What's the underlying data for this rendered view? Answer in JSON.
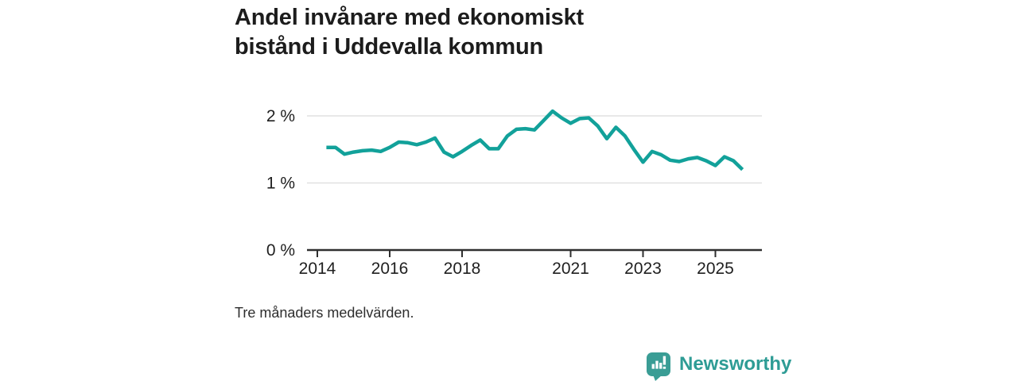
{
  "header": {
    "title": "Andel invånare med ekonomiskt bistånd i Uddevalla kommun"
  },
  "footer": {
    "note": "Tre månaders medelvärden.",
    "brand": "Newsworthy"
  },
  "colors": {
    "line": "#12A19A",
    "grid": "#e0e0e0",
    "axis": "#2f2f2f",
    "tick_label": "#1f1f1f",
    "title": "#1c1c1c",
    "brand_teal": "#2E9C95",
    "brand_icon_teal": "#3A9D95",
    "background": "#ffffff"
  },
  "chart_data": {
    "type": "line",
    "title": "Andel invånare med ekonomiskt bistånd i Uddevalla kommun",
    "subtitle": "Tre månaders medelvärden.",
    "unit": "%",
    "xlabel": "",
    "ylabel": "",
    "xlim": [
      2013.7,
      2026.3
    ],
    "ylim": [
      0,
      2.43
    ],
    "grid": "horizontal",
    "legend": "none",
    "yticks": [
      {
        "value": 0,
        "label": "0 %"
      },
      {
        "value": 1,
        "label": "1 %"
      },
      {
        "value": 2,
        "label": "2 %"
      }
    ],
    "xticks": [
      {
        "value": 2014,
        "label": "2014"
      },
      {
        "value": 2016,
        "label": "2016"
      },
      {
        "value": 2018,
        "label": "2018"
      },
      {
        "value": 2021,
        "label": "2021"
      },
      {
        "value": 2023,
        "label": "2023"
      },
      {
        "value": 2025,
        "label": "2025"
      }
    ],
    "series": [
      {
        "name": "Andel invånare med ekonomiskt bistånd",
        "color": "#12A19A",
        "points": [
          [
            2014.25,
            1.53
          ],
          [
            2014.5,
            1.53
          ],
          [
            2014.75,
            1.43
          ],
          [
            2015.0,
            1.46
          ],
          [
            2015.25,
            1.48
          ],
          [
            2015.5,
            1.49
          ],
          [
            2015.75,
            1.47
          ],
          [
            2016.0,
            1.53
          ],
          [
            2016.25,
            1.61
          ],
          [
            2016.5,
            1.6
          ],
          [
            2016.75,
            1.57
          ],
          [
            2017.0,
            1.61
          ],
          [
            2017.25,
            1.67
          ],
          [
            2017.5,
            1.46
          ],
          [
            2017.75,
            1.39
          ],
          [
            2018.0,
            1.47
          ],
          [
            2018.25,
            1.56
          ],
          [
            2018.5,
            1.64
          ],
          [
            2018.75,
            1.51
          ],
          [
            2019.0,
            1.51
          ],
          [
            2019.25,
            1.7
          ],
          [
            2019.5,
            1.8
          ],
          [
            2019.75,
            1.81
          ],
          [
            2020.0,
            1.79
          ],
          [
            2020.25,
            1.93
          ],
          [
            2020.5,
            2.07
          ],
          [
            2020.75,
            1.97
          ],
          [
            2021.0,
            1.89
          ],
          [
            2021.25,
            1.96
          ],
          [
            2021.5,
            1.97
          ],
          [
            2021.75,
            1.85
          ],
          [
            2022.0,
            1.66
          ],
          [
            2022.25,
            1.83
          ],
          [
            2022.5,
            1.7
          ],
          [
            2022.75,
            1.5
          ],
          [
            2023.0,
            1.31
          ],
          [
            2023.25,
            1.47
          ],
          [
            2023.5,
            1.42
          ],
          [
            2023.75,
            1.34
          ],
          [
            2024.0,
            1.32
          ],
          [
            2024.25,
            1.36
          ],
          [
            2024.5,
            1.38
          ],
          [
            2024.75,
            1.33
          ],
          [
            2025.0,
            1.26
          ],
          [
            2025.25,
            1.39
          ],
          [
            2025.5,
            1.33
          ],
          [
            2025.75,
            1.2
          ]
        ]
      }
    ]
  }
}
